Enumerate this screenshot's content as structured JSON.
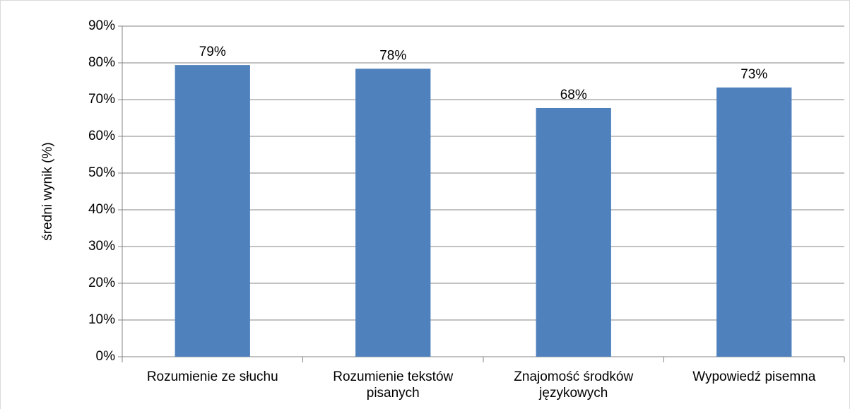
{
  "chart_data": {
    "type": "bar",
    "y_label": "średni wynik (%)",
    "categories": [
      "Rozumienie ze słuchu",
      "Rozumienie tekstów pisanych",
      "Znajomość środków językowych",
      "Wypowiedź pisemna"
    ],
    "values": [
      79.4,
      78.4,
      67.7,
      73.3
    ],
    "value_labels": [
      "79%",
      "78%",
      "68%",
      "73%"
    ],
    "color": "#4f81bd",
    "ylim": [
      0,
      90
    ],
    "yticks": [
      {
        "value": 0,
        "label": "0%"
      },
      {
        "value": 10,
        "label": "10%"
      },
      {
        "value": 20,
        "label": "20%"
      },
      {
        "value": 30,
        "label": "30%"
      },
      {
        "value": 40,
        "label": "40%"
      },
      {
        "value": 50,
        "label": "50%"
      },
      {
        "value": 60,
        "label": "60%"
      },
      {
        "value": 70,
        "label": "70%"
      },
      {
        "value": 80,
        "label": "80%"
      },
      {
        "value": 90,
        "label": "90%"
      }
    ],
    "grid": true
  }
}
